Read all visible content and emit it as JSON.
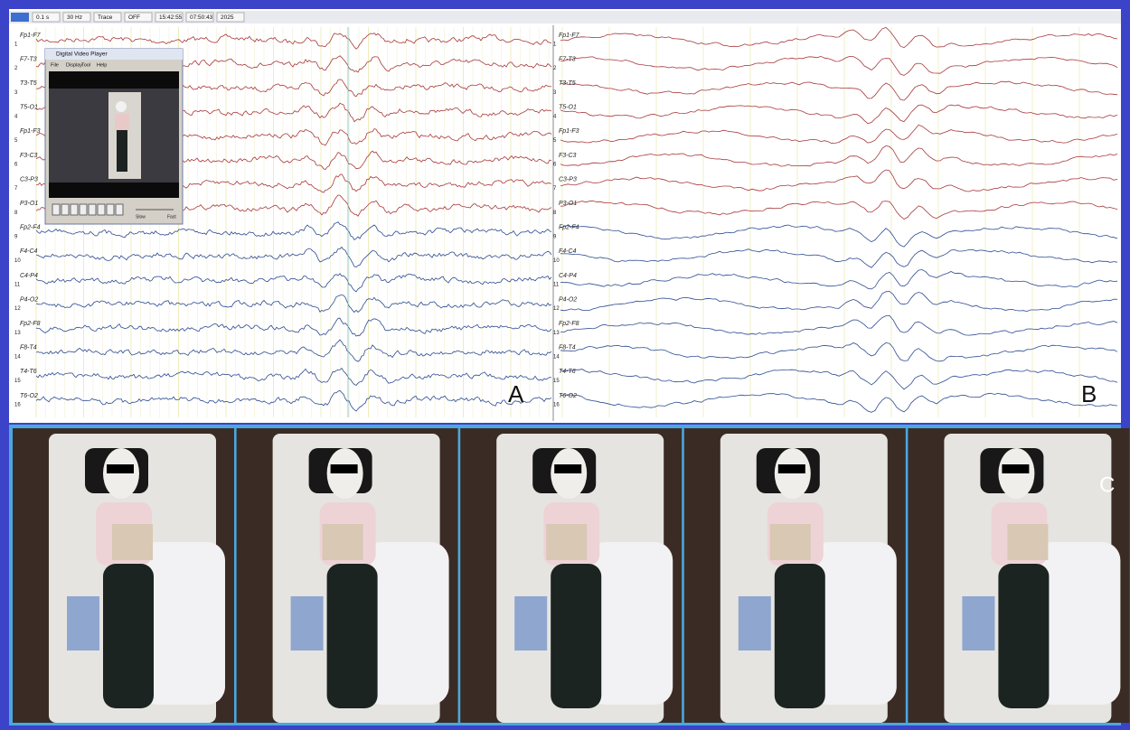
{
  "toolbar": {
    "items": [
      "0.1 s",
      "30 Hz",
      "Trace",
      "OFF",
      "15:42:55",
      "07:50:43",
      "2025"
    ]
  },
  "panel_a": {
    "label": "A",
    "channels": [
      "Fp1-F7",
      "F7-T3",
      "T3-T5",
      "T5-O1",
      "Fp1-F3",
      "F3-C3",
      "C3-P3",
      "P3-O1",
      "Fp2-F4",
      "F4-C4",
      "C4-P4",
      "P4-O2",
      "Fp2-F8",
      "F8-T4",
      "T4-T6",
      "T6-O2"
    ],
    "numbers": [
      1,
      2,
      3,
      4,
      5,
      6,
      7,
      8,
      9,
      10,
      11,
      12,
      13,
      14,
      15,
      16
    ]
  },
  "panel_b": {
    "label": "B",
    "channels": [
      "Fp1-F7",
      "F7-T3",
      "T3-T5",
      "T5-O1",
      "Fp1-F3",
      "F3-C3",
      "C3-P3",
      "P3-O1",
      "Fp2-F4",
      "F4-C4",
      "C4-P4",
      "P4-O2",
      "Fp2-F8",
      "F8-T4",
      "T4-T6",
      "T6-O2"
    ],
    "numbers": [
      1,
      2,
      3,
      4,
      5,
      6,
      7,
      8,
      9,
      10,
      11,
      12,
      13,
      14,
      15,
      16
    ]
  },
  "panel_c": {
    "label": "C"
  },
  "video_player": {
    "title": "Digital Video Player",
    "menu": [
      "File",
      "Display",
      "Tool",
      "Help"
    ],
    "slider": [
      "Slow",
      "Fast"
    ]
  }
}
